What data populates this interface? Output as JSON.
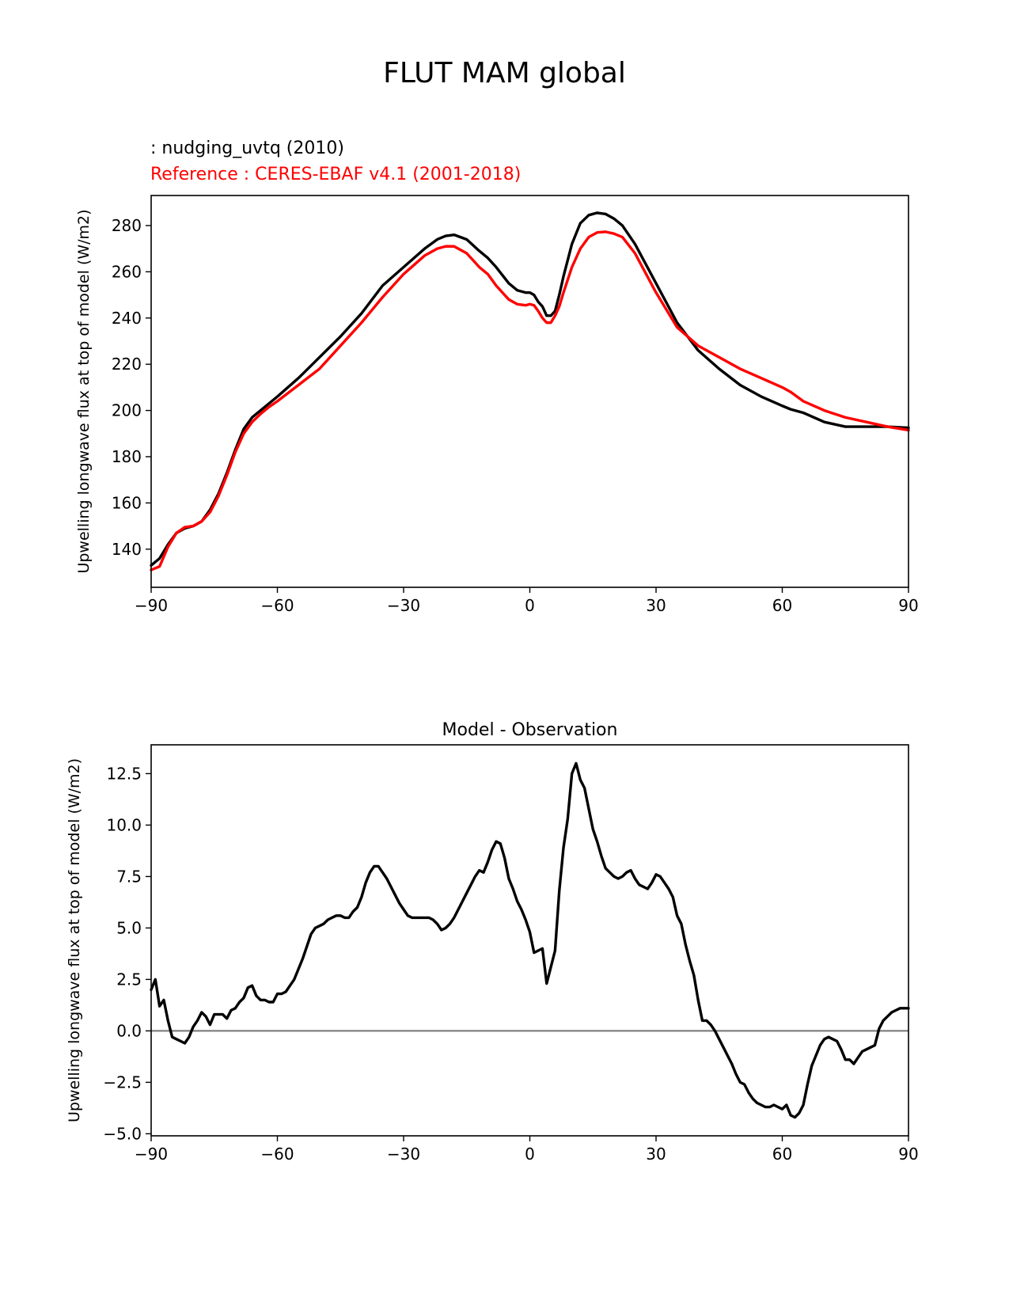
{
  "suptitle": "FLUT MAM global",
  "legend": {
    "test_label": "  : nudging_uvtq (2010)",
    "ref_label": "Reference : CERES-EBAF v4.1 (2001-2018)"
  },
  "colors": {
    "test": "#000000",
    "ref": "#ff0000",
    "zero_line": "#808080"
  },
  "chart_data": [
    {
      "type": "line",
      "title": "",
      "xlabel": "",
      "ylabel": "Upwelling longwave flux at top of model (W/m2)",
      "xlim": [
        -90,
        90
      ],
      "ylim": [
        123.5,
        293
      ],
      "xticks": [
        -90,
        -60,
        -30,
        0,
        30,
        60,
        90
      ],
      "xtick_labels": [
        "−90",
        "−60",
        "−30",
        "0",
        "30",
        "60",
        "90"
      ],
      "yticks": [
        140,
        160,
        180,
        200,
        220,
        240,
        260,
        280
      ],
      "ytick_labels": [
        "140",
        "160",
        "180",
        "200",
        "220",
        "240",
        "260",
        "280"
      ],
      "series": [
        {
          "name": "nudging_uvtq (2010)",
          "color": "#000000",
          "x": [
            -90,
            -88,
            -86,
            -84,
            -82,
            -80,
            -78,
            -76,
            -74,
            -72,
            -70,
            -68,
            -66,
            -64,
            -62,
            -60,
            -55,
            -50,
            -45,
            -40,
            -35,
            -30,
            -25,
            -22,
            -20,
            -18,
            -15,
            -12,
            -10,
            -8,
            -5,
            -3,
            -1,
            0,
            1,
            2,
            3,
            4,
            5,
            6,
            7,
            8,
            10,
            12,
            14,
            16,
            18,
            20,
            22,
            25,
            30,
            35,
            40,
            45,
            50,
            55,
            60,
            62,
            65,
            70,
            75,
            80,
            85,
            90
          ],
          "y": [
            133,
            136,
            142,
            147,
            149,
            150,
            152,
            157,
            164,
            173,
            183,
            192,
            197,
            200,
            203,
            206,
            214,
            223,
            232,
            242,
            254,
            262,
            270,
            274,
            275.5,
            276,
            274,
            269,
            266,
            262,
            255,
            252,
            251,
            251,
            250,
            247,
            245,
            241,
            241,
            243,
            250,
            258,
            272,
            281,
            284.5,
            285.5,
            285,
            283,
            280,
            272,
            255,
            238,
            226,
            218,
            211,
            206,
            202,
            200.5,
            199,
            195,
            193,
            193,
            193,
            192.5
          ]
        },
        {
          "name": "Reference : CERES-EBAF v4.1 (2001-2018)",
          "color": "#ff0000",
          "x": [
            -90,
            -88,
            -86,
            -84,
            -82,
            -80,
            -78,
            -76,
            -74,
            -72,
            -70,
            -68,
            -66,
            -64,
            -62,
            -60,
            -55,
            -50,
            -45,
            -40,
            -35,
            -30,
            -25,
            -22,
            -20,
            -18,
            -15,
            -12,
            -10,
            -8,
            -5,
            -3,
            -1,
            0,
            1,
            2,
            3,
            4,
            5,
            6,
            7,
            8,
            10,
            12,
            14,
            16,
            18,
            20,
            22,
            25,
            30,
            35,
            40,
            45,
            50,
            55,
            60,
            62,
            65,
            70,
            75,
            80,
            85,
            90
          ],
          "y": [
            131,
            132.5,
            141,
            147,
            149.5,
            150,
            152,
            156,
            163,
            172,
            182,
            190,
            195,
            198.5,
            201.5,
            204,
            211,
            218,
            228,
            238,
            249,
            259,
            267,
            270,
            271,
            271,
            268,
            262,
            259,
            254,
            248,
            246,
            245.5,
            246,
            245.5,
            243,
            240,
            238,
            238,
            241,
            245,
            251,
            262,
            270,
            275,
            277,
            277.3,
            276.5,
            275,
            268,
            251,
            236,
            228,
            223,
            218,
            214,
            210,
            208,
            204,
            200,
            197,
            195,
            193,
            191.5
          ]
        }
      ]
    },
    {
      "type": "line",
      "title": "Model - Observation",
      "xlabel": "",
      "ylabel": "Upwelling longwave flux at top of model (W/m2)",
      "xlim": [
        -90,
        90
      ],
      "ylim": [
        -5.1,
        13.9
      ],
      "xticks": [
        -90,
        -60,
        -30,
        0,
        30,
        60,
        90
      ],
      "xtick_labels": [
        "−90",
        "−60",
        "−30",
        "0",
        "30",
        "60",
        "90"
      ],
      "yticks": [
        -5.0,
        -2.5,
        0.0,
        2.5,
        5.0,
        7.5,
        10.0,
        12.5
      ],
      "ytick_labels": [
        "−5.0",
        "−2.5",
        "0.0",
        "2.5",
        "5.0",
        "7.5",
        "10.0",
        "12.5"
      ],
      "zero_line": 0,
      "series": [
        {
          "name": "Model - Observation",
          "color": "#000000",
          "x": [
            -90,
            -89,
            -88,
            -87,
            -86,
            -85,
            -84,
            -83,
            -82,
            -81,
            -80,
            -79,
            -78,
            -77,
            -76,
            -75,
            -74,
            -73,
            -72,
            -71,
            -70,
            -69,
            -68,
            -67,
            -66,
            -65,
            -64,
            -63,
            -62,
            -61,
            -60,
            -59,
            -58,
            -57,
            -56,
            -55,
            -54,
            -53,
            -52,
            -51,
            -50,
            -49,
            -48,
            -47,
            -46,
            -45,
            -44,
            -43,
            -42,
            -41,
            -40,
            -39,
            -38,
            -37,
            -36,
            -35,
            -34,
            -33,
            -32,
            -31,
            -30,
            -29,
            -28,
            -27,
            -26,
            -25,
            -24,
            -23,
            -22,
            -21,
            -20,
            -19,
            -18,
            -17,
            -16,
            -15,
            -14,
            -13,
            -12,
            -11,
            -10,
            -9,
            -8,
            -7,
            -6,
            -5,
            -4,
            -3,
            -2,
            -1,
            0,
            1,
            2,
            3,
            4,
            5,
            6,
            7,
            8,
            9,
            10,
            11,
            12,
            13,
            14,
            15,
            16,
            17,
            18,
            19,
            20,
            21,
            22,
            23,
            24,
            25,
            26,
            27,
            28,
            29,
            30,
            31,
            32,
            33,
            34,
            35,
            36,
            37,
            38,
            39,
            40,
            41,
            42,
            43,
            44,
            45,
            46,
            47,
            48,
            49,
            50,
            51,
            52,
            53,
            54,
            55,
            56,
            57,
            58,
            59,
            60,
            61,
            62,
            63,
            64,
            65,
            66,
            67,
            68,
            69,
            70,
            71,
            72,
            73,
            74,
            75,
            76,
            77,
            78,
            79,
            80,
            81,
            82,
            83,
            84,
            85,
            86,
            87,
            88,
            89,
            90
          ],
          "y": [
            2.0,
            2.5,
            1.2,
            1.5,
            0.5,
            -0.3,
            -0.4,
            -0.5,
            -0.6,
            -0.3,
            0.2,
            0.5,
            0.9,
            0.7,
            0.3,
            0.8,
            0.8,
            0.8,
            0.6,
            1.0,
            1.1,
            1.4,
            1.6,
            2.1,
            2.2,
            1.7,
            1.5,
            1.5,
            1.4,
            1.4,
            1.8,
            1.8,
            1.9,
            2.2,
            2.5,
            3.0,
            3.5,
            4.1,
            4.7,
            5.0,
            5.1,
            5.2,
            5.4,
            5.5,
            5.6,
            5.6,
            5.5,
            5.5,
            5.8,
            6.0,
            6.5,
            7.2,
            7.7,
            8.0,
            8.0,
            7.7,
            7.4,
            7.0,
            6.6,
            6.2,
            5.9,
            5.6,
            5.5,
            5.5,
            5.5,
            5.5,
            5.5,
            5.4,
            5.2,
            4.9,
            5.0,
            5.2,
            5.5,
            5.9,
            6.3,
            6.7,
            7.1,
            7.5,
            7.8,
            7.7,
            8.2,
            8.8,
            9.2,
            9.1,
            8.4,
            7.4,
            6.9,
            6.3,
            5.9,
            5.4,
            4.8,
            3.8,
            3.9,
            4.0,
            2.3,
            3.1,
            3.9,
            6.8,
            8.9,
            10.3,
            12.5,
            13.0,
            12.2,
            11.8,
            10.8,
            9.8,
            9.2,
            8.5,
            7.9,
            7.7,
            7.5,
            7.4,
            7.5,
            7.7,
            7.8,
            7.4,
            7.1,
            7.0,
            6.9,
            7.2,
            7.6,
            7.5,
            7.2,
            6.9,
            6.5,
            5.6,
            5.2,
            4.2,
            3.4,
            2.7,
            1.5,
            0.5,
            0.5,
            0.3,
            0.0,
            -0.4,
            -0.8,
            -1.2,
            -1.6,
            -2.1,
            -2.5,
            -2.6,
            -3.0,
            -3.3,
            -3.5,
            -3.6,
            -3.7,
            -3.7,
            -3.6,
            -3.7,
            -3.8,
            -3.6,
            -4.1,
            -4.2,
            -4.0,
            -3.6,
            -2.6,
            -1.7,
            -1.2,
            -0.7,
            -0.4,
            -0.3,
            -0.4,
            -0.5,
            -0.9,
            -1.4,
            -1.4,
            -1.6,
            -1.3,
            -1.0,
            -0.9,
            -0.8,
            -0.7,
            0.1,
            0.5,
            0.7,
            0.9,
            1.0,
            1.1,
            1.1,
            1.1
          ]
        }
      ]
    }
  ]
}
